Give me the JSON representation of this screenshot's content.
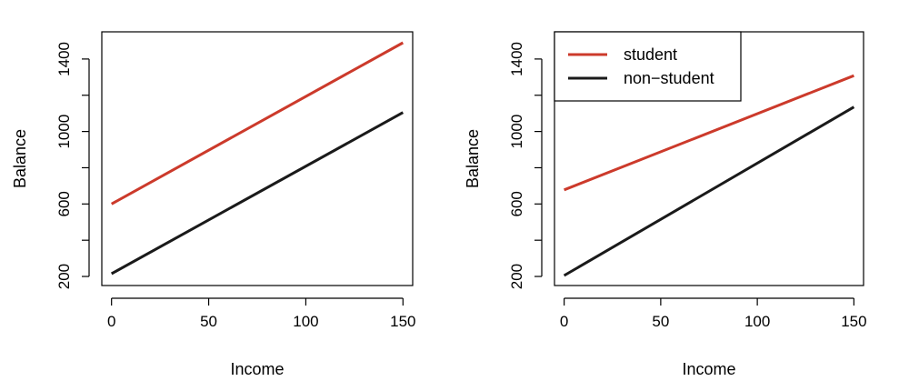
{
  "chart_data": [
    {
      "type": "line",
      "title": "",
      "xlabel": "Income",
      "ylabel": "Balance",
      "xlim": [
        -5,
        155
      ],
      "ylim": [
        150,
        1550
      ],
      "xticks": [
        0,
        50,
        100,
        150
      ],
      "yticks": [
        200,
        400,
        600,
        800,
        1000,
        1200,
        1400
      ],
      "ytick_labels": [
        "200",
        "",
        "600",
        "",
        "1000",
        "",
        "1400"
      ],
      "grid": false,
      "legend": null,
      "series": [
        {
          "color": "#cc3a2b",
          "x": [
            0,
            150
          ],
          "y": [
            600,
            1490
          ]
        },
        {
          "color": "#1a1a1a",
          "x": [
            0,
            150
          ],
          "y": [
            215,
            1105
          ]
        }
      ]
    },
    {
      "type": "line",
      "title": "",
      "xlabel": "Income",
      "ylabel": "Balance",
      "xlim": [
        -5,
        155
      ],
      "ylim": [
        150,
        1550
      ],
      "xticks": [
        0,
        50,
        100,
        150
      ],
      "yticks": [
        200,
        400,
        600,
        800,
        1000,
        1200,
        1400
      ],
      "ytick_labels": [
        "200",
        "",
        "600",
        "",
        "1000",
        "",
        "1400"
      ],
      "grid": false,
      "legend": "top-left",
      "series": [
        {
          "name": "student",
          "color": "#cc3a2b",
          "x": [
            0,
            150
          ],
          "y": [
            678,
            1308
          ]
        },
        {
          "name": "non−student",
          "color": "#1a1a1a",
          "x": [
            0,
            150
          ],
          "y": [
            205,
            1135
          ]
        }
      ]
    }
  ]
}
